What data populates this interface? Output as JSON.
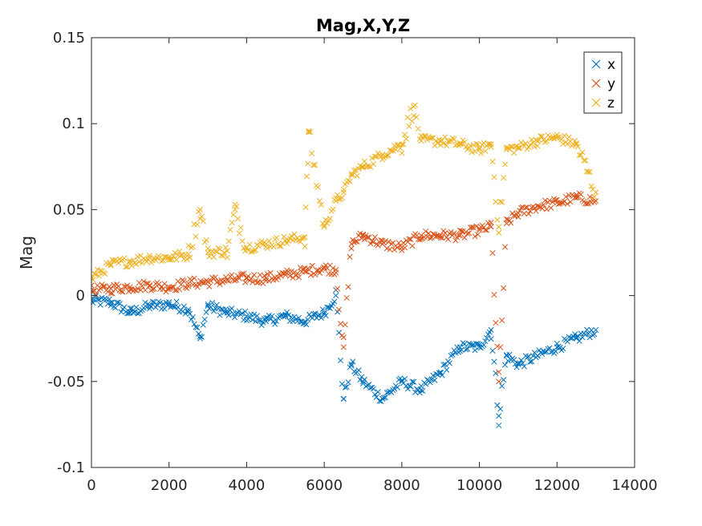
{
  "chart_data": {
    "type": "scatter",
    "title": "Mag,X,Y,Z",
    "xlabel": "",
    "ylabel": "Mag",
    "xlim": [
      0,
      14000
    ],
    "ylim": [
      -0.1,
      0.15
    ],
    "x_ticks": [
      0,
      2000,
      4000,
      6000,
      8000,
      10000,
      12000,
      14000
    ],
    "x_tick_labels": [
      "0",
      "2000",
      "4000",
      "6000",
      "8000",
      "10000",
      "12000",
      "14000"
    ],
    "y_ticks": [
      -0.1,
      -0.05,
      0,
      0.05,
      0.1,
      0.15
    ],
    "y_tick_labels": [
      "-0.1",
      "-0.05",
      "0",
      "0.05",
      "0.1",
      "0.15"
    ],
    "grid": false,
    "legend_position": "top-right",
    "marker": "x",
    "series": [
      {
        "name": "x",
        "color": "#0072BD",
        "x": [
          0,
          500,
          1000,
          1500,
          2000,
          2500,
          2800,
          3000,
          3500,
          4000,
          4500,
          5000,
          5500,
          6000,
          6300,
          6500,
          6700,
          7000,
          7500,
          8000,
          8500,
          9000,
          9500,
          10000,
          10300,
          10500,
          10700,
          11000,
          11500,
          12000,
          12500,
          13000
        ],
        "y": [
          -0.003,
          -0.004,
          -0.01,
          -0.006,
          -0.005,
          -0.008,
          -0.025,
          -0.006,
          -0.01,
          -0.012,
          -0.015,
          -0.012,
          -0.015,
          -0.01,
          0.0,
          -0.06,
          -0.04,
          -0.05,
          -0.06,
          -0.05,
          -0.055,
          -0.045,
          -0.03,
          -0.03,
          -0.02,
          -0.07,
          -0.035,
          -0.04,
          -0.035,
          -0.03,
          -0.025,
          -0.02
        ]
      },
      {
        "name": "y",
        "color": "#D95319",
        "x": [
          0,
          500,
          1000,
          1500,
          2000,
          2500,
          3000,
          3500,
          4000,
          4500,
          5000,
          5500,
          6000,
          6300,
          6500,
          6700,
          7000,
          7500,
          8000,
          8500,
          9000,
          9500,
          10000,
          10300,
          10500,
          10700,
          11000,
          11500,
          12000,
          12500,
          13000
        ],
        "y": [
          0.003,
          0.004,
          0.005,
          0.006,
          0.005,
          0.007,
          0.008,
          0.009,
          0.01,
          0.01,
          0.012,
          0.014,
          0.016,
          0.015,
          -0.03,
          0.03,
          0.035,
          0.03,
          0.028,
          0.035,
          0.035,
          0.035,
          0.038,
          0.04,
          -0.05,
          0.042,
          0.048,
          0.052,
          0.054,
          0.057,
          0.055
        ]
      },
      {
        "name": "z",
        "color": "#EDB120",
        "x": [
          0,
          500,
          1000,
          1500,
          2000,
          2500,
          2800,
          3000,
          3500,
          3700,
          4000,
          4500,
          5000,
          5500,
          5600,
          6000,
          6300,
          6500,
          6700,
          7000,
          7500,
          8000,
          8300,
          8500,
          9000,
          9500,
          10000,
          10300,
          10500,
          10700,
          11000,
          11500,
          12000,
          12500,
          13000
        ],
        "y": [
          0.01,
          0.018,
          0.02,
          0.022,
          0.022,
          0.024,
          0.05,
          0.025,
          0.026,
          0.05,
          0.028,
          0.03,
          0.032,
          0.034,
          0.095,
          0.04,
          0.055,
          0.06,
          0.07,
          0.075,
          0.082,
          0.088,
          0.11,
          0.09,
          0.09,
          0.088,
          0.085,
          0.088,
          0.04,
          0.085,
          0.086,
          0.09,
          0.092,
          0.088,
          0.06
        ]
      }
    ]
  }
}
